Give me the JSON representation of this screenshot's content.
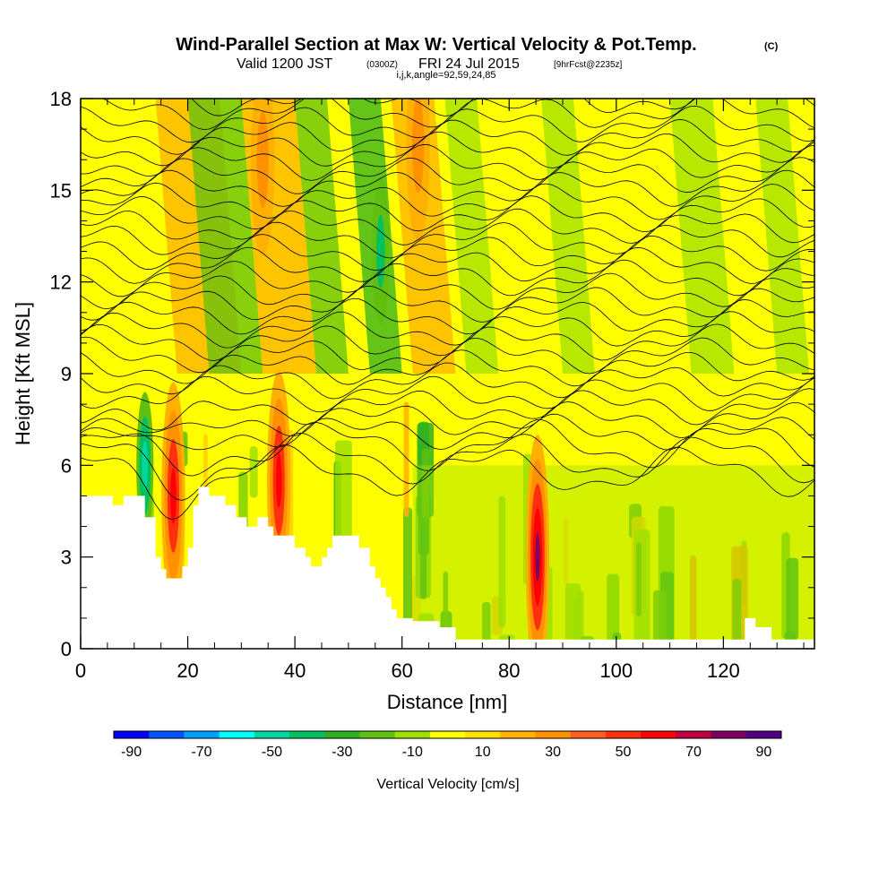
{
  "title": {
    "main": "Wind-Parallel Section at Max W: Vertical Velocity & Pot.Temp.",
    "copyright": "(C)",
    "valid_prefix": "Valid 1200 JST",
    "valid_utc": "(0300Z)",
    "valid_date": "FRI 24 Jul 2015",
    "forecast": "[9hrFcst@2235z]",
    "indices": "i,j,k,angle=92,59,24,85"
  },
  "chart_data": {
    "type": "heatmap",
    "xlabel": "Distance [nm]",
    "ylabel": "Height [Kft MSL]",
    "xlim": [
      0,
      137
    ],
    "ylim": [
      0,
      18
    ],
    "x_ticks": [
      "0",
      "20",
      "40",
      "60",
      "80",
      "100",
      "120"
    ],
    "x_tick_values": [
      0,
      20,
      40,
      60,
      80,
      100,
      120
    ],
    "y_ticks": [
      "0",
      "3",
      "6",
      "9",
      "12",
      "15",
      "18"
    ],
    "y_tick_values": [
      0,
      3,
      6,
      9,
      12,
      15,
      18
    ],
    "field": "Vertical Velocity",
    "contour_field": "Potential Temperature",
    "terrain_profile": [
      [
        0,
        5.0
      ],
      [
        6,
        5.0
      ],
      [
        6,
        4.7
      ],
      [
        8,
        4.7
      ],
      [
        8,
        5.0
      ],
      [
        12,
        5.0
      ],
      [
        12,
        4.3
      ],
      [
        14,
        4.3
      ],
      [
        14,
        3.0
      ],
      [
        15,
        3.0
      ],
      [
        15,
        2.6
      ],
      [
        16,
        2.6
      ],
      [
        16,
        2.3
      ],
      [
        19,
        2.3
      ],
      [
        19,
        2.7
      ],
      [
        20,
        2.7
      ],
      [
        20,
        3.3
      ],
      [
        21,
        3.3
      ],
      [
        21,
        4.7
      ],
      [
        22,
        4.7
      ],
      [
        22,
        5.3
      ],
      [
        24,
        5.3
      ],
      [
        24,
        5.0
      ],
      [
        27,
        5.0
      ],
      [
        27,
        4.7
      ],
      [
        29,
        4.7
      ],
      [
        29,
        4.3
      ],
      [
        31,
        4.3
      ],
      [
        31,
        4.0
      ],
      [
        33,
        4.0
      ],
      [
        33,
        4.3
      ],
      [
        35,
        4.3
      ],
      [
        35,
        4.0
      ],
      [
        36,
        4.0
      ],
      [
        36,
        3.7
      ],
      [
        40,
        3.7
      ],
      [
        40,
        3.3
      ],
      [
        42,
        3.3
      ],
      [
        42,
        3.0
      ],
      [
        43,
        3.0
      ],
      [
        43,
        2.7
      ],
      [
        45,
        2.7
      ],
      [
        45,
        3.0
      ],
      [
        46,
        3.0
      ],
      [
        46,
        3.3
      ],
      [
        47,
        3.3
      ],
      [
        47,
        3.7
      ],
      [
        52,
        3.7
      ],
      [
        52,
        3.3
      ],
      [
        54,
        3.3
      ],
      [
        54,
        2.7
      ],
      [
        55,
        2.7
      ],
      [
        55,
        2.3
      ],
      [
        56,
        2.3
      ],
      [
        56,
        2.0
      ],
      [
        57,
        2.0
      ],
      [
        57,
        1.7
      ],
      [
        58,
        1.7
      ],
      [
        58,
        1.3
      ],
      [
        59,
        1.3
      ],
      [
        59,
        1.0
      ],
      [
        62,
        1.0
      ],
      [
        62,
        0.9
      ],
      [
        67,
        0.9
      ],
      [
        67,
        0.7
      ],
      [
        70,
        0.7
      ],
      [
        70,
        0.3
      ],
      [
        124,
        0.3
      ],
      [
        124,
        1.0
      ],
      [
        126,
        1.0
      ],
      [
        126,
        0.7
      ],
      [
        129,
        0.7
      ],
      [
        129,
        0.3
      ],
      [
        137,
        0.3
      ]
    ],
    "updraft_cores": [
      {
        "x": 17.3,
        "z": 5.0,
        "w": 80
      },
      {
        "x": 37.0,
        "z": 5.5,
        "w": 70
      },
      {
        "x": 85.3,
        "z": 3.0,
        "w": 100
      },
      {
        "x": 34.0,
        "z": 16.0,
        "w": 40
      },
      {
        "x": 63.0,
        "z": 16.5,
        "w": 40
      }
    ],
    "downdraft_cores": [
      {
        "x": 12.0,
        "z": 6.0,
        "w": -60
      },
      {
        "x": 56.0,
        "z": 13.0,
        "w": -30
      }
    ]
  },
  "colorbar": {
    "label": "Vertical Velocity [cm/s]",
    "tick_labels": [
      "-90",
      "-70",
      "-50",
      "-30",
      "-10",
      "10",
      "30",
      "50",
      "70",
      "90"
    ],
    "colors": [
      "#0000ff",
      "#0055ff",
      "#00a0ff",
      "#00ffff",
      "#00d8a0",
      "#00c060",
      "#30b020",
      "#60c010",
      "#a0e000",
      "#ffff00",
      "#ffe000",
      "#ffb000",
      "#ff9000",
      "#ff6020",
      "#ff3010",
      "#ff0000",
      "#c00040",
      "#800060",
      "#500080"
    ]
  }
}
